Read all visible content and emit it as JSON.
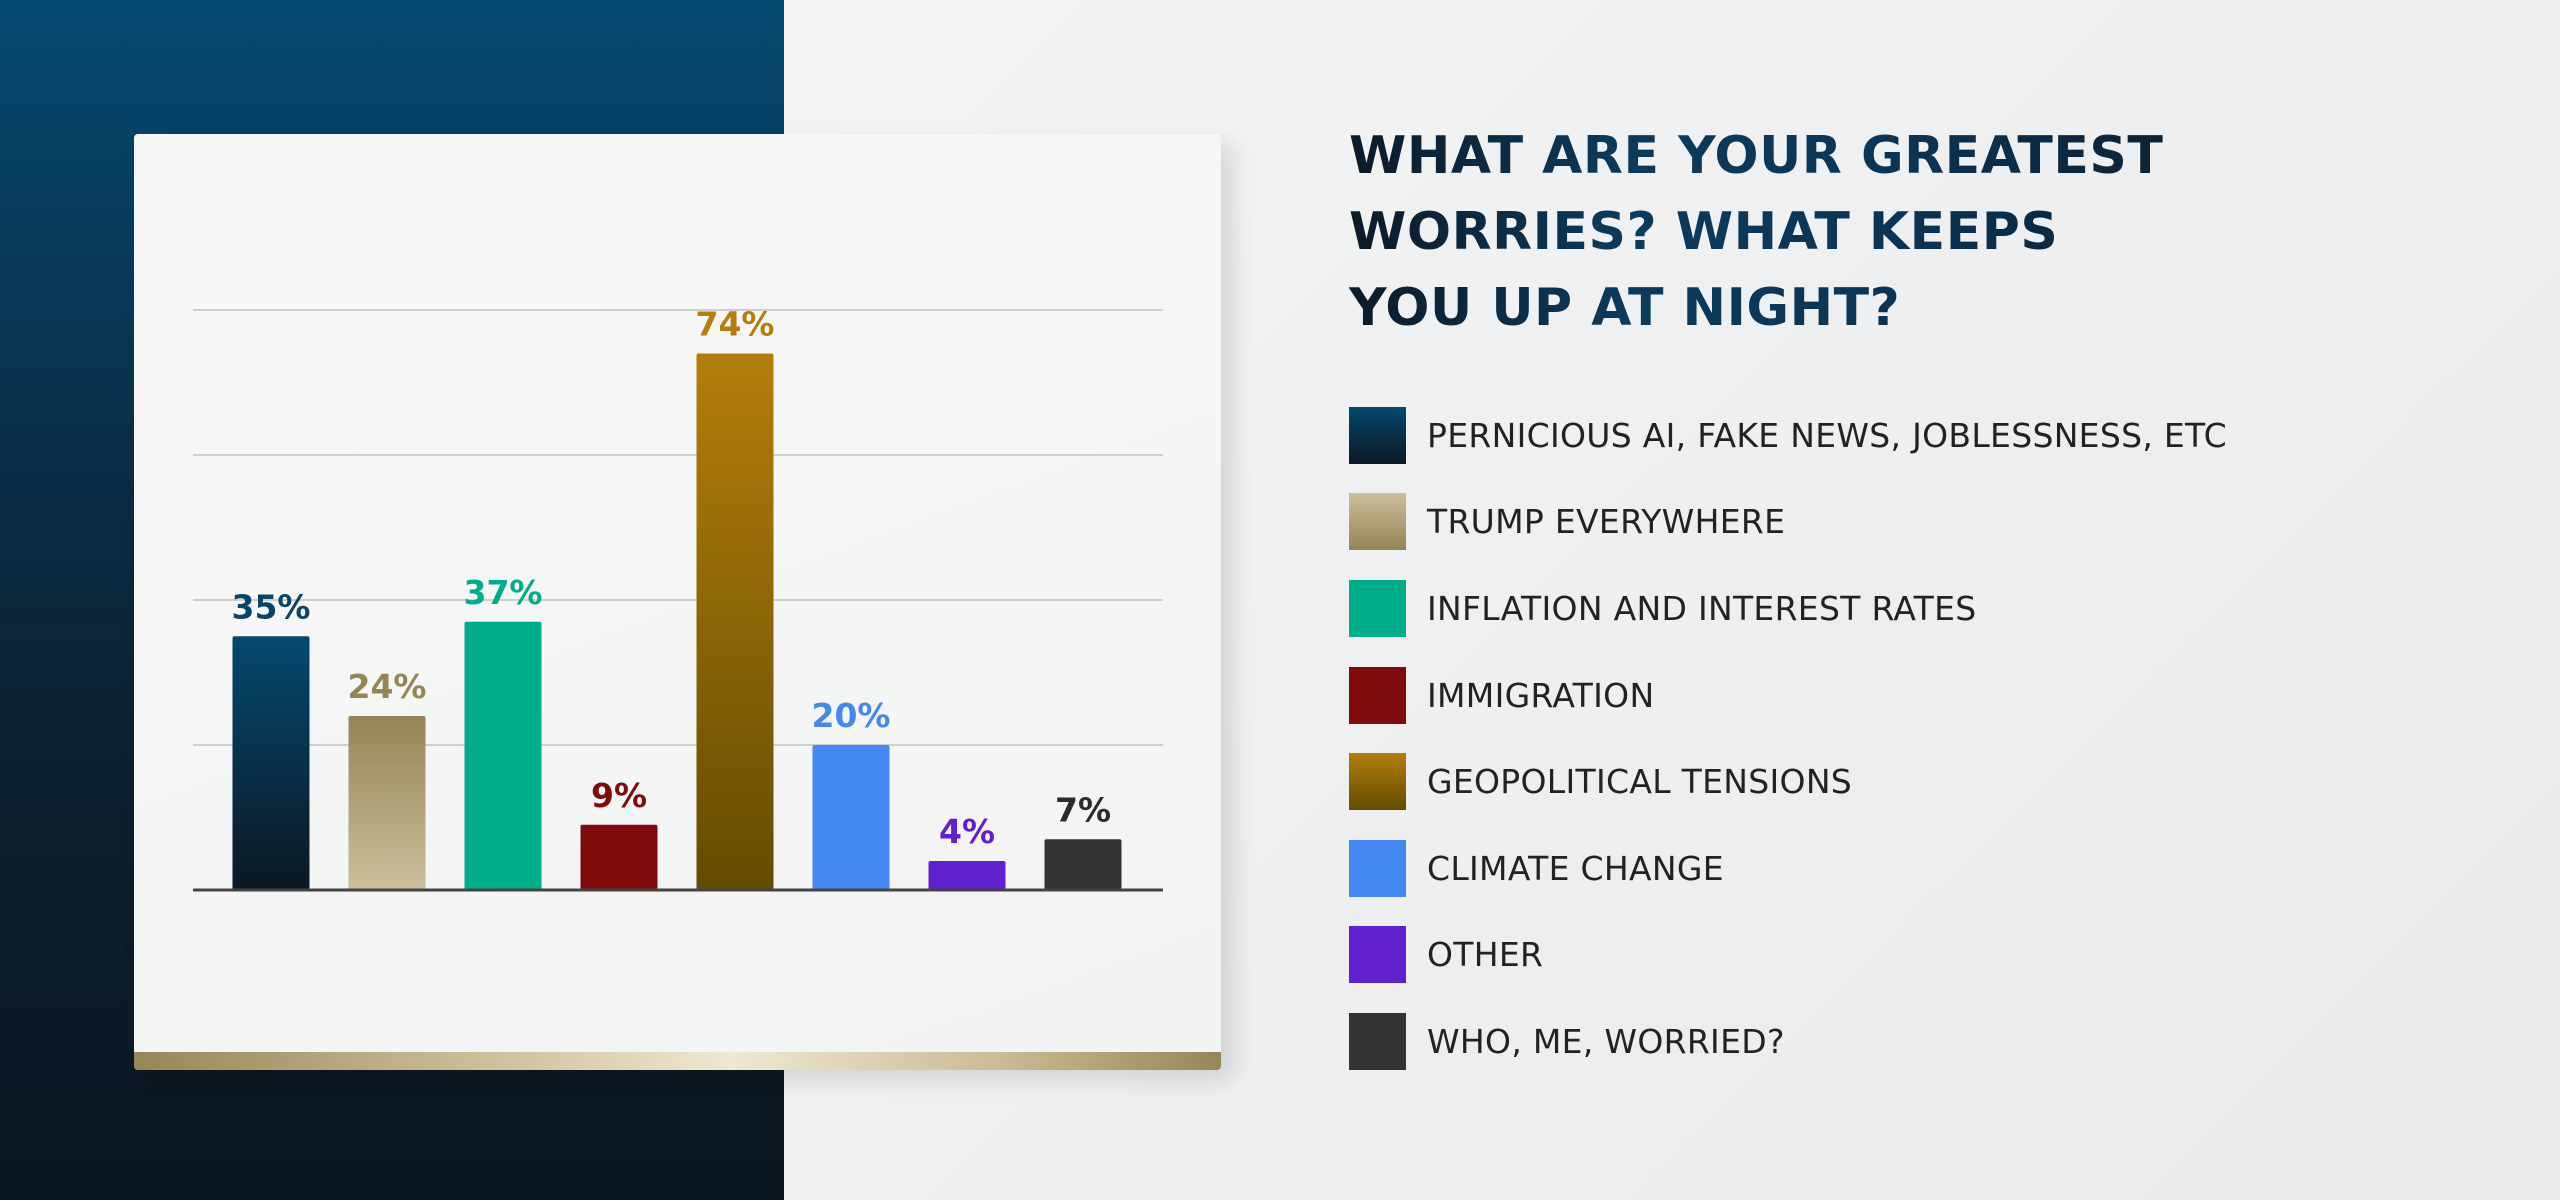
{
  "title": {
    "lines": [
      "WHAT ARE YOUR GREATEST",
      "WORRIES? WHAT KEEPS",
      "YOU UP AT NIGHT?"
    ]
  },
  "chart_data": {
    "type": "bar",
    "title": "WHAT ARE YOUR GREATEST WORRIES? WHAT KEEPS YOU UP AT NIGHT?",
    "categories": [
      "PERNICIOUS AI, FAKE NEWS, JOBLESSNESS, ETC",
      "TRUMP EVERYWHERE",
      "INFLATION AND INTEREST RATES",
      "IMMIGRATION",
      "GEOPOLITICAL TENSIONS",
      "CLIMATE CHANGE",
      "OTHER",
      "WHO, ME, WORRIED?"
    ],
    "values": [
      35,
      24,
      37,
      9,
      74,
      20,
      4,
      7
    ],
    "labels": [
      "35%",
      "24%",
      "37%",
      "9%",
      "74%",
      "20%",
      "4%",
      "7%"
    ],
    "colors": [
      [
        "#05486e",
        "#0b1823"
      ],
      [
        "#958456",
        "#cbbf9c"
      ],
      [
        "#00ad8a",
        "#00ad8a"
      ],
      [
        "#7f0c0c",
        "#7f0c0c"
      ],
      [
        "#b47e0b",
        "#624c02"
      ],
      [
        "#4588f4",
        "#4588f4"
      ],
      [
        "#6020d0",
        "#6020d0"
      ],
      [
        "#333333",
        "#333333"
      ]
    ],
    "label_colors": [
      "#0b4468",
      "#958456",
      "#00ad8a",
      "#7f0c0c",
      "#b47e0b",
      "#4588f4",
      "#6020d0",
      "#2b2b2b"
    ],
    "legend_colors": [
      [
        "#05486e",
        "#0b1823"
      ],
      [
        "#cbbf9c",
        "#958456"
      ],
      [
        "#00ad8a",
        "#00ad8a"
      ],
      [
        "#7f0c0c",
        "#7f0c0c"
      ],
      [
        "#b47e0b",
        "#624c02"
      ],
      [
        "#4588f4",
        "#4588f4"
      ],
      [
        "#6020d0",
        "#6020d0"
      ],
      [
        "#333333",
        "#333333"
      ]
    ],
    "xlabel": "",
    "ylabel": "",
    "ylim": [
      0,
      80
    ],
    "gridlines": [
      20,
      40,
      60,
      80
    ],
    "grid": true,
    "legend_position": "right"
  }
}
